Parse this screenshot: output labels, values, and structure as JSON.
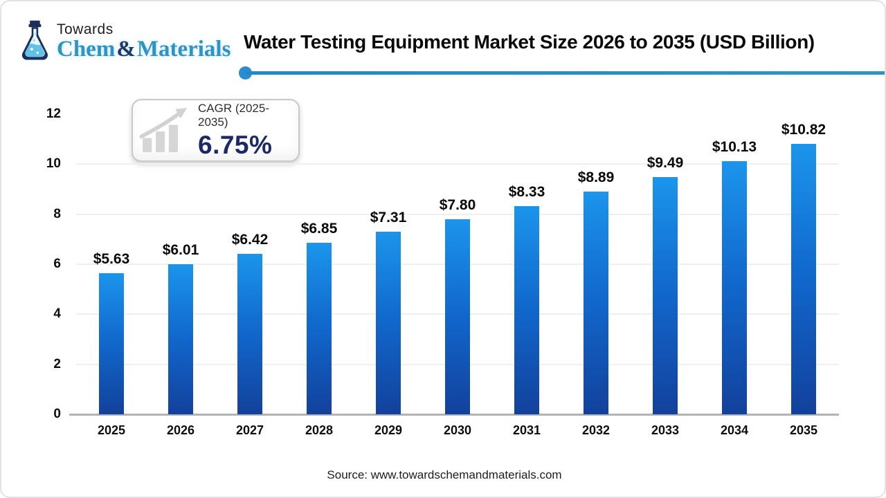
{
  "logo": {
    "towards": "Towards",
    "chem": "Chem",
    "amp": "&",
    "materials": "Materials"
  },
  "header": {
    "title": "Water Testing Equipment Market Size 2026 to 2035 (USD Billion)"
  },
  "cagr": {
    "label": "CAGR (2025-2035)",
    "value": "6.75%"
  },
  "chart_data": {
    "type": "bar",
    "title": "Water Testing Equipment Market Size 2026 to 2035 (USD Billion)",
    "unit": "USD Billion",
    "categories": [
      "2025",
      "2026",
      "2027",
      "2028",
      "2029",
      "2030",
      "2031",
      "2032",
      "2033",
      "2034",
      "2035"
    ],
    "values": [
      5.63,
      6.01,
      6.42,
      6.85,
      7.31,
      7.8,
      8.33,
      8.89,
      9.49,
      10.13,
      10.82
    ],
    "value_labels": [
      "$5.63",
      "$6.01",
      "$6.42",
      "$6.85",
      "$7.31",
      "$7.80",
      "$8.33",
      "$8.89",
      "$9.49",
      "$10.13",
      "$10.82"
    ],
    "xlabel": "",
    "ylabel": "",
    "ylim": [
      0,
      12
    ],
    "yticks": [
      0,
      2,
      4,
      6,
      8,
      10,
      12
    ],
    "grid": true,
    "legend": false,
    "bar_color_top": "#1b95ec",
    "bar_color_bottom": "#12419c"
  },
  "footer": {
    "source": "Source: www.towardschemandmaterials.com"
  },
  "colors": {
    "accent_line_blue": "#2389cd",
    "cagr_value_navy": "#1b2a66",
    "brand_blue": "#2f93c6",
    "brand_navy": "#1d3a66",
    "axis_gray": "#b3b3b3"
  }
}
